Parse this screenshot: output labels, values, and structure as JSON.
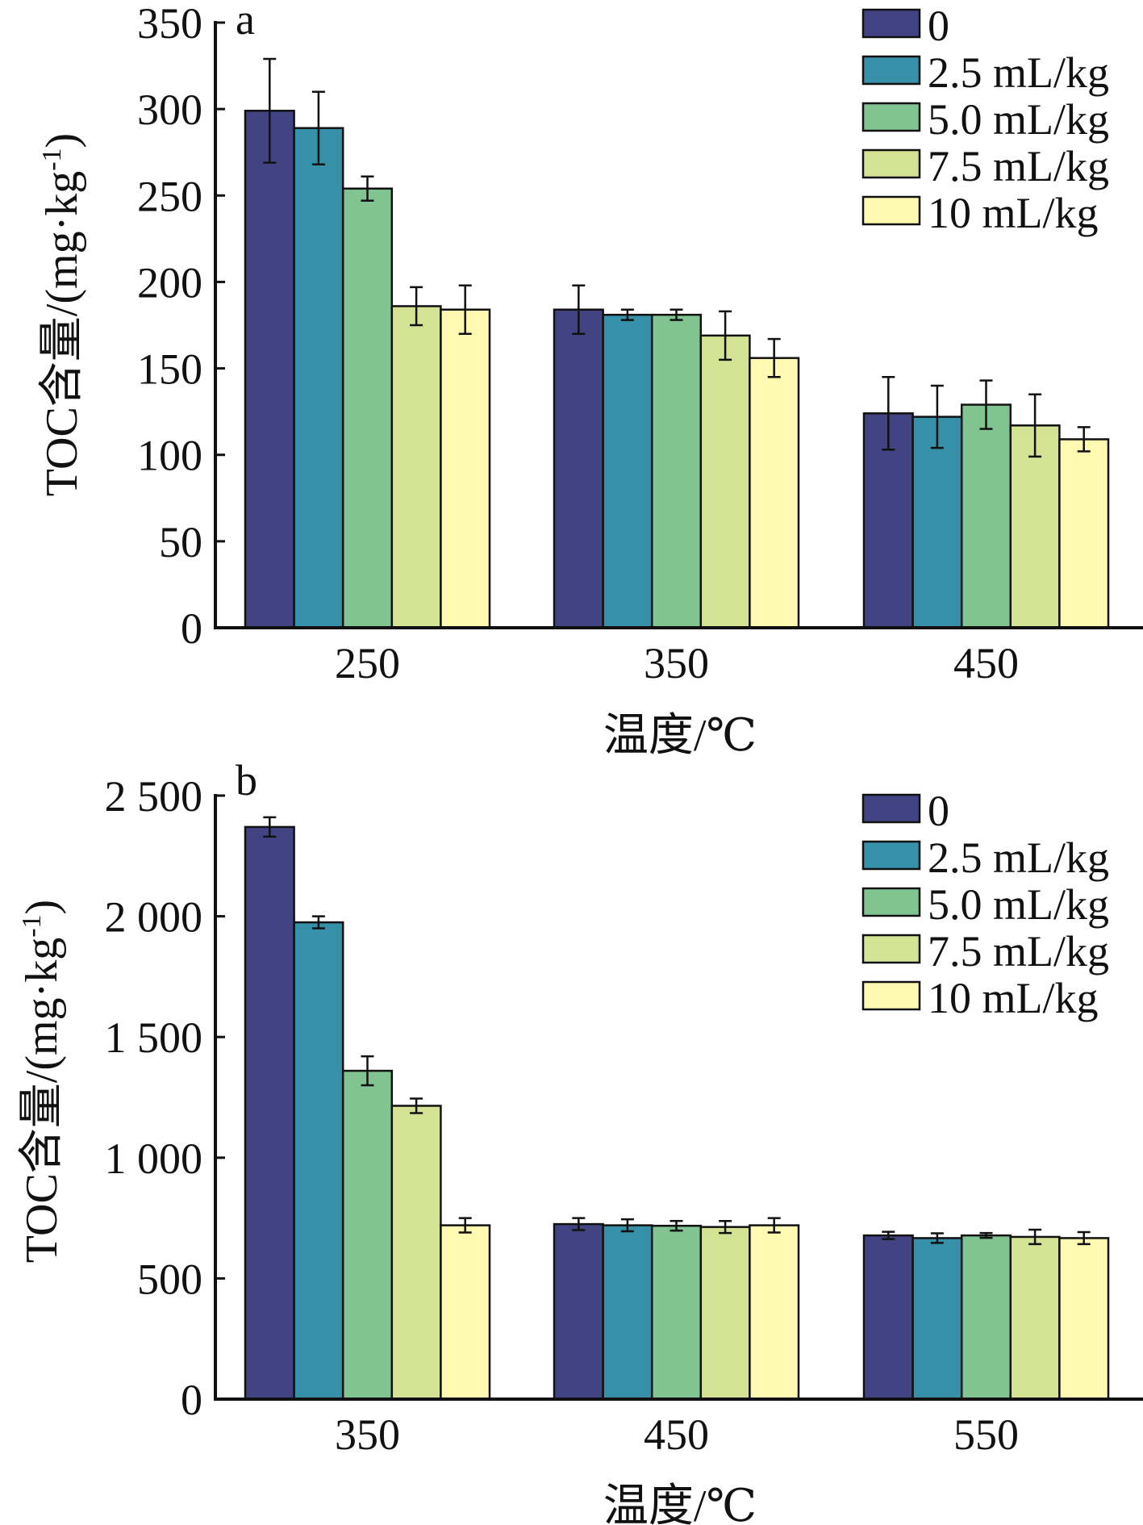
{
  "colors": [
    "#414383",
    "#3691a8",
    "#82c392",
    "#d4e294",
    "#fff9b1"
  ],
  "chart_data": [
    {
      "type": "bar",
      "panel_label": "a",
      "xlabel": "温度/℃",
      "ylabel": "TOC含量/(mg·kg-1)",
      "ylabel_main": "TOC含量/(mg·kg",
      "ylabel_sup": "-1",
      "ylabel_close": ")",
      "ylim": [
        0,
        350
      ],
      "yticks": [
        0,
        50,
        100,
        150,
        200,
        250,
        300,
        350
      ],
      "ytick_labels": [
        "0",
        "50",
        "100",
        "150",
        "200",
        "250",
        "300",
        "350"
      ],
      "categories": [
        "250",
        "350",
        "450"
      ],
      "legend_position": "top-right",
      "series": [
        {
          "name": "0",
          "values": [
            299,
            184,
            124
          ],
          "errors": [
            30,
            14,
            21
          ]
        },
        {
          "name": "2.5 mL/kg",
          "values": [
            289,
            181,
            122
          ],
          "errors": [
            21,
            3,
            18
          ]
        },
        {
          "name": "5.0 mL/kg",
          "values": [
            254,
            181,
            129
          ],
          "errors": [
            7,
            3,
            14
          ]
        },
        {
          "name": "7.5 mL/kg",
          "values": [
            186,
            169,
            117
          ],
          "errors": [
            11,
            14,
            18
          ]
        },
        {
          "name": "10 mL/kg",
          "values": [
            184,
            156,
            109
          ],
          "errors": [
            14,
            11,
            7
          ]
        }
      ]
    },
    {
      "type": "bar",
      "panel_label": "b",
      "xlabel": "温度/℃",
      "ylabel": "TOC含量/(mg·kg-1)",
      "ylabel_main": "TOC含量/(mg·kg",
      "ylabel_sup": "-1",
      "ylabel_close": ")",
      "ylim": [
        0,
        2500
      ],
      "yticks": [
        0,
        500,
        1000,
        1500,
        2000,
        2500
      ],
      "ytick_labels": [
        "0",
        "500",
        "1 000",
        "1 500",
        "2 000",
        "2 500"
      ],
      "categories": [
        "350",
        "450",
        "550"
      ],
      "legend_position": "top-right",
      "series": [
        {
          "name": "0",
          "values": [
            2370,
            725,
            678
          ],
          "errors": [
            40,
            25,
            15
          ]
        },
        {
          "name": "2.5 mL/kg",
          "values": [
            1975,
            720,
            667
          ],
          "errors": [
            25,
            25,
            20
          ]
        },
        {
          "name": "5.0 mL/kg",
          "values": [
            1360,
            718,
            678
          ],
          "errors": [
            60,
            20,
            10
          ]
        },
        {
          "name": "7.5 mL/kg",
          "values": [
            1215,
            713,
            672
          ],
          "errors": [
            30,
            25,
            30
          ]
        },
        {
          "name": "10 mL/kg",
          "values": [
            720,
            720,
            667
          ],
          "errors": [
            30,
            30,
            25
          ]
        }
      ]
    }
  ]
}
